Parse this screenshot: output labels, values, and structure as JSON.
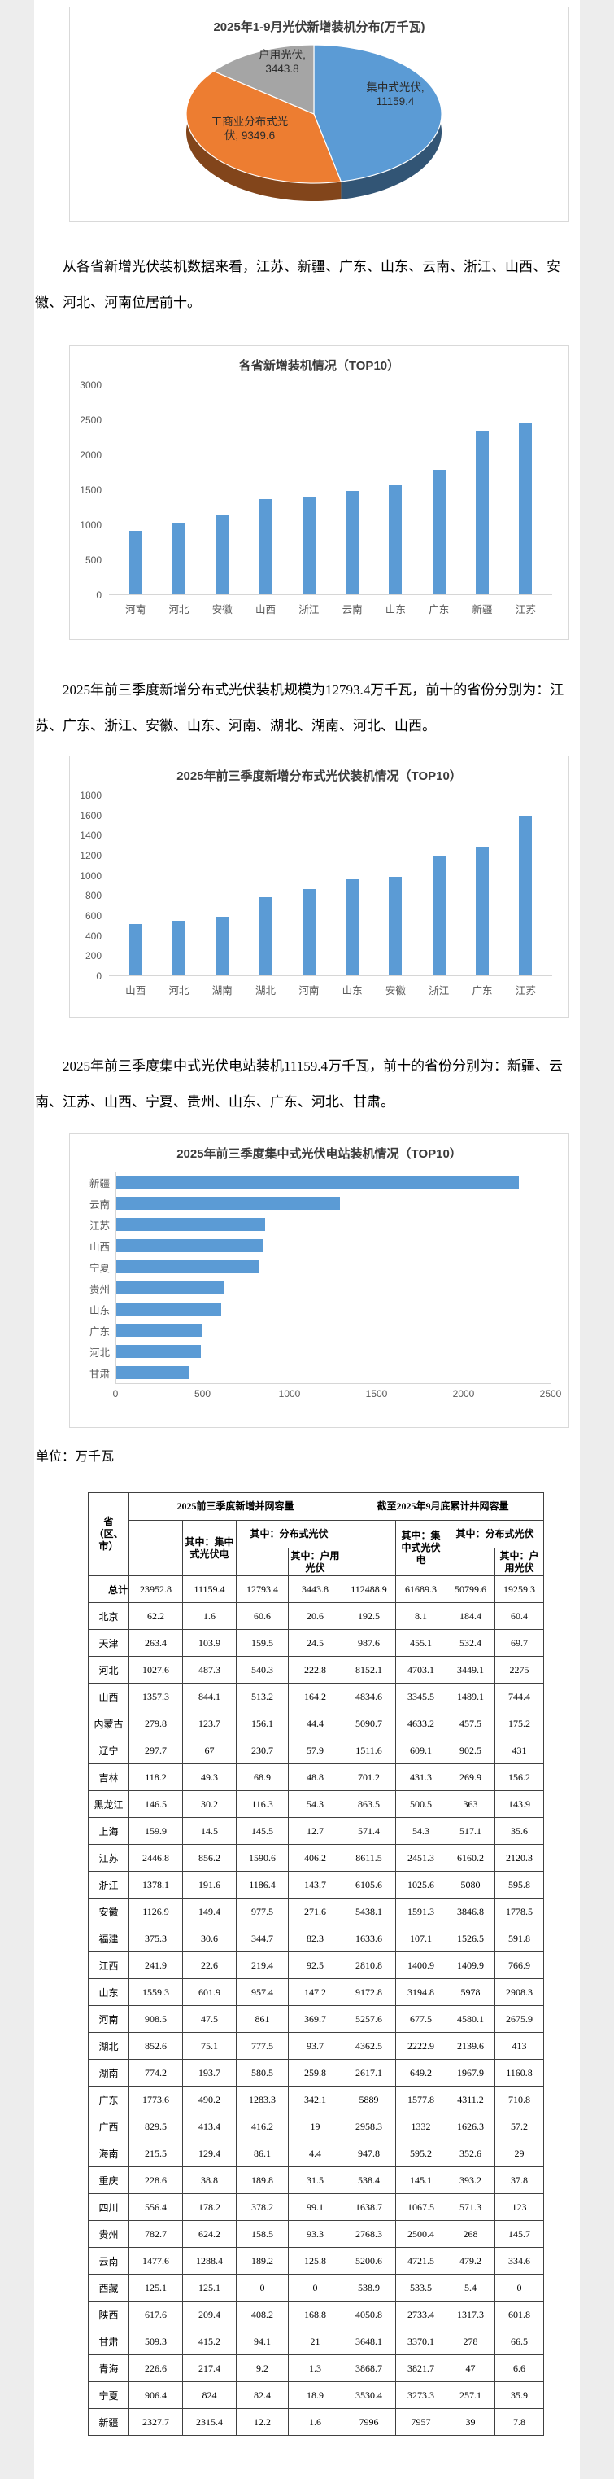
{
  "paragraphs": {
    "p1": "从各省新增光伏装机数据来看，江苏、新疆、广东、山东、云南、浙江、山西、安徽、河北、河南位居前十。",
    "p2": "2025年前三季度新增分布式光伏装机规模为12793.4万千瓦，前十的省份分别为：江苏、广东、浙江、安徽、山东、河南、湖北、湖南、河北、山西。",
    "p3": "2025年前三季度集中式光伏电站装机11159.4万千瓦，前十的省份分别为：新疆、云南、江苏、山西、宁夏、贵州、山东、广东、河北、甘肃。",
    "unit_label": "单位：万千瓦"
  },
  "chart_data": [
    {
      "type": "pie",
      "style": "3d",
      "title": "2025年1-9月光伏新增装机分布(万千瓦)",
      "labels": [
        "集中式光伏",
        "工商业分布式光伏",
        "户用光伏"
      ],
      "values": [
        11159.4,
        9349.6,
        3443.8
      ],
      "colors": [
        "#5B9BD5",
        "#ED7D31",
        "#A5A5A5"
      ],
      "display_labels": [
        "集中式光伏,\n11159.4",
        "工商业分布式光\n伏, 9349.6",
        "户用光伏,\n3443.8"
      ],
      "legend_position": "none"
    },
    {
      "type": "bar",
      "title": "各省新增装机情况（TOP10）",
      "categories": [
        "河南",
        "河北",
        "安徽",
        "山西",
        "浙江",
        "云南",
        "山东",
        "广东",
        "新疆",
        "江苏"
      ],
      "values": [
        908.5,
        1027.6,
        1126.9,
        1357.3,
        1378.1,
        1477.6,
        1559.3,
        1773.6,
        2327.7,
        2446.8
      ],
      "xlabel": "",
      "ylabel": "",
      "ylim": [
        0,
        3000
      ],
      "ytick": 500,
      "grid": false,
      "legend_position": "none",
      "bar_color": "#5B9BD5"
    },
    {
      "type": "bar",
      "title": "2025年前三季度新增分布式光伏装机情况（TOP10）",
      "categories": [
        "山西",
        "河北",
        "湖南",
        "湖北",
        "河南",
        "山东",
        "安徽",
        "浙江",
        "广东",
        "江苏"
      ],
      "values": [
        513.2,
        540.3,
        580.5,
        777.5,
        861,
        957.4,
        977.5,
        1186.4,
        1283.3,
        1590.6
      ],
      "xlabel": "",
      "ylabel": "",
      "ylim": [
        0,
        1800
      ],
      "ytick": 200,
      "grid": false,
      "legend_position": "none",
      "bar_color": "#5B9BD5"
    },
    {
      "type": "bar",
      "orientation": "horizontal",
      "title": "2025年前三季度集中式光伏电站装机情况（TOP10）",
      "categories": [
        "新疆",
        "云南",
        "江苏",
        "山西",
        "宁夏",
        "贵州",
        "山东",
        "广东",
        "河北",
        "甘肃"
      ],
      "values": [
        2315.4,
        1288.4,
        856.2,
        844.1,
        824,
        624.2,
        601.9,
        490.2,
        487.3,
        415.2
      ],
      "xlabel": "",
      "ylabel": "",
      "xlim": [
        0,
        2500
      ],
      "xtick": 500,
      "grid": false,
      "legend_position": "none",
      "bar_color": "#5B9BD5"
    }
  ],
  "table": {
    "header": {
      "col_province": "省（区、市）",
      "group_new": "2025前三季度新增并网容量",
      "group_cum": "截至2025年9月底累计并网容量",
      "sub_centralized": "其中：集中式光伏电",
      "sub_distributed": "其中：分布式光伏",
      "sub_household": "其中：户用光伏"
    },
    "rows": [
      [
        "总计",
        "23952.8",
        "11159.4",
        "12793.4",
        "3443.8",
        "112488.9",
        "61689.3",
        "50799.6",
        "19259.3"
      ],
      [
        "北京",
        "62.2",
        "1.6",
        "60.6",
        "20.6",
        "192.5",
        "8.1",
        "184.4",
        "60.4"
      ],
      [
        "天津",
        "263.4",
        "103.9",
        "159.5",
        "24.5",
        "987.6",
        "455.1",
        "532.4",
        "69.7"
      ],
      [
        "河北",
        "1027.6",
        "487.3",
        "540.3",
        "222.8",
        "8152.1",
        "4703.1",
        "3449.1",
        "2275"
      ],
      [
        "山西",
        "1357.3",
        "844.1",
        "513.2",
        "164.2",
        "4834.6",
        "3345.5",
        "1489.1",
        "744.4"
      ],
      [
        "内蒙古",
        "279.8",
        "123.7",
        "156.1",
        "44.4",
        "5090.7",
        "4633.2",
        "457.5",
        "175.2"
      ],
      [
        "辽宁",
        "297.7",
        "67",
        "230.7",
        "57.9",
        "1511.6",
        "609.1",
        "902.5",
        "431"
      ],
      [
        "吉林",
        "118.2",
        "49.3",
        "68.9",
        "48.8",
        "701.2",
        "431.3",
        "269.9",
        "156.2"
      ],
      [
        "黑龙江",
        "146.5",
        "30.2",
        "116.3",
        "54.3",
        "863.5",
        "500.5",
        "363",
        "143.9"
      ],
      [
        "上海",
        "159.9",
        "14.5",
        "145.5",
        "12.7",
        "571.4",
        "54.3",
        "517.1",
        "35.6"
      ],
      [
        "江苏",
        "2446.8",
        "856.2",
        "1590.6",
        "406.2",
        "8611.5",
        "2451.3",
        "6160.2",
        "2120.3"
      ],
      [
        "浙江",
        "1378.1",
        "191.6",
        "1186.4",
        "143.7",
        "6105.6",
        "1025.6",
        "5080",
        "595.8"
      ],
      [
        "安徽",
        "1126.9",
        "149.4",
        "977.5",
        "271.6",
        "5438.1",
        "1591.3",
        "3846.8",
        "1778.5"
      ],
      [
        "福建",
        "375.3",
        "30.6",
        "344.7",
        "82.3",
        "1633.6",
        "107.1",
        "1526.5",
        "591.8"
      ],
      [
        "江西",
        "241.9",
        "22.6",
        "219.4",
        "92.5",
        "2810.8",
        "1400.9",
        "1409.9",
        "766.9"
      ],
      [
        "山东",
        "1559.3",
        "601.9",
        "957.4",
        "147.2",
        "9172.8",
        "3194.8",
        "5978",
        "2908.3"
      ],
      [
        "河南",
        "908.5",
        "47.5",
        "861",
        "369.7",
        "5257.6",
        "677.5",
        "4580.1",
        "2675.9"
      ],
      [
        "湖北",
        "852.6",
        "75.1",
        "777.5",
        "93.7",
        "4362.5",
        "2222.9",
        "2139.6",
        "413"
      ],
      [
        "湖南",
        "774.2",
        "193.7",
        "580.5",
        "259.8",
        "2617.1",
        "649.2",
        "1967.9",
        "1160.8"
      ],
      [
        "广东",
        "1773.6",
        "490.2",
        "1283.3",
        "342.1",
        "5889",
        "1577.8",
        "4311.2",
        "710.8"
      ],
      [
        "广西",
        "829.5",
        "413.4",
        "416.2",
        "19",
        "2958.3",
        "1332",
        "1626.3",
        "57.2"
      ],
      [
        "海南",
        "215.5",
        "129.4",
        "86.1",
        "4.4",
        "947.8",
        "595.2",
        "352.6",
        "29"
      ],
      [
        "重庆",
        "228.6",
        "38.8",
        "189.8",
        "31.5",
        "538.4",
        "145.1",
        "393.2",
        "37.8"
      ],
      [
        "四川",
        "556.4",
        "178.2",
        "378.2",
        "99.1",
        "1638.7",
        "1067.5",
        "571.3",
        "123"
      ],
      [
        "贵州",
        "782.7",
        "624.2",
        "158.5",
        "93.3",
        "2768.3",
        "2500.4",
        "268",
        "145.7"
      ],
      [
        "云南",
        "1477.6",
        "1288.4",
        "189.2",
        "125.8",
        "5200.6",
        "4721.5",
        "479.2",
        "334.6"
      ],
      [
        "西藏",
        "125.1",
        "125.1",
        "0",
        "0",
        "538.9",
        "533.5",
        "5.4",
        "0"
      ],
      [
        "陕西",
        "617.6",
        "209.4",
        "408.2",
        "168.8",
        "4050.8",
        "2733.4",
        "1317.3",
        "601.8"
      ],
      [
        "甘肃",
        "509.3",
        "415.2",
        "94.1",
        "21",
        "3648.1",
        "3370.1",
        "278",
        "66.5"
      ],
      [
        "青海",
        "226.6",
        "217.4",
        "9.2",
        "1.3",
        "3868.7",
        "3821.7",
        "47",
        "6.6"
      ],
      [
        "宁夏",
        "906.4",
        "824",
        "82.4",
        "18.9",
        "3530.4",
        "3273.3",
        "257.1",
        "35.9"
      ],
      [
        "新疆",
        "2327.7",
        "2315.4",
        "12.2",
        "1.6",
        "7996",
        "7957",
        "39",
        "7.8"
      ]
    ]
  }
}
